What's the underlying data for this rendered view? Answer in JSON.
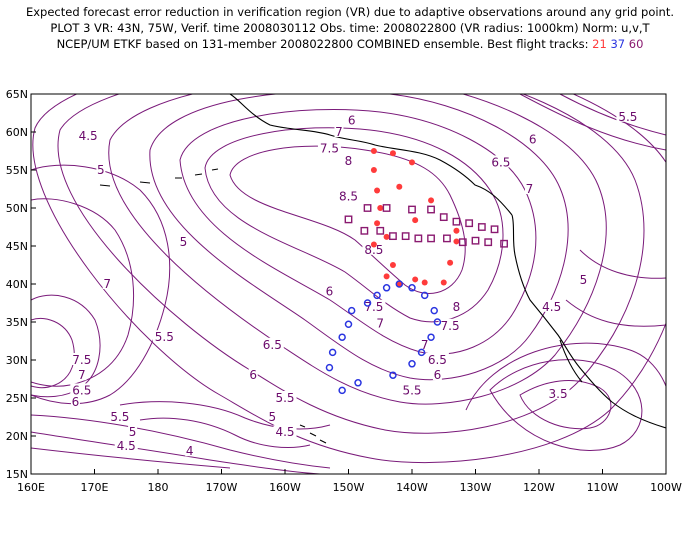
{
  "header": {
    "line1": "Expected forecast error reduction in verification region (VR) due to adaptive observations around any grid point.",
    "line2": "PLOT 3 VR: 43N, 75W, Verif. time 2008030112 Obs. time: 2008022800 (VR radius: 1000km) Norm: u,v,T",
    "line3_prefix": "NCEP/UM ETKF based on 131-member 2008022800 COMBINED ensemble.  Best flight tracks: ",
    "track_21": "21",
    "track_37": "37",
    "track_60": "60"
  },
  "map": {
    "lat_labels": [
      "65N",
      "60N",
      "55N",
      "50N",
      "45N",
      "40N",
      "35N",
      "30N",
      "25N",
      "20N",
      "15N"
    ],
    "lon_labels": [
      "160E",
      "170E",
      "180",
      "170W",
      "160W",
      "150W",
      "140W",
      "130W",
      "120W",
      "110W",
      "100W"
    ],
    "contour_labels": [
      {
        "text": "6",
        "lon": -149.5,
        "lat": 61.5
      },
      {
        "text": "5.5",
        "lon": -106,
        "lat": 62
      },
      {
        "text": "4.5",
        "lon": 169,
        "lat": 59.5
      },
      {
        "text": "7",
        "lon": -151.5,
        "lat": 60
      },
      {
        "text": "6",
        "lon": -121,
        "lat": 59
      },
      {
        "text": "7.5",
        "lon": -153,
        "lat": 57.8
      },
      {
        "text": "8",
        "lon": -150,
        "lat": 56.2
      },
      {
        "text": "6.5",
        "lon": -126,
        "lat": 56
      },
      {
        "text": "5",
        "lon": 171,
        "lat": 55
      },
      {
        "text": "8.5",
        "lon": -150,
        "lat": 51.5
      },
      {
        "text": "7",
        "lon": -121.5,
        "lat": 52.5
      },
      {
        "text": "5",
        "lon": -176,
        "lat": 45.5
      },
      {
        "text": "8.5",
        "lon": -146,
        "lat": 44.5
      },
      {
        "text": "7",
        "lon": 172,
        "lat": 40
      },
      {
        "text": "6",
        "lon": -153,
        "lat": 39
      },
      {
        "text": "8",
        "lon": -133,
        "lat": 37
      },
      {
        "text": "5",
        "lon": -113,
        "lat": 40.5
      },
      {
        "text": "4.5",
        "lon": -118,
        "lat": 37
      },
      {
        "text": "7.5",
        "lon": -146,
        "lat": 37
      },
      {
        "text": "7",
        "lon": -145,
        "lat": 34.8
      },
      {
        "text": "7.5",
        "lon": -134,
        "lat": 34.5
      },
      {
        "text": "5.5",
        "lon": -179,
        "lat": 33
      },
      {
        "text": "7",
        "lon": -138,
        "lat": 32
      },
      {
        "text": "6.5",
        "lon": -162,
        "lat": 32
      },
      {
        "text": "7.5",
        "lon": 168,
        "lat": 30
      },
      {
        "text": "6.5",
        "lon": -136,
        "lat": 30
      },
      {
        "text": "6",
        "lon": -165,
        "lat": 28
      },
      {
        "text": "7",
        "lon": 168,
        "lat": 28
      },
      {
        "text": "6",
        "lon": -136,
        "lat": 28
      },
      {
        "text": "6.5",
        "lon": 168,
        "lat": 26
      },
      {
        "text": "3.5",
        "lon": -117,
        "lat": 25.5
      },
      {
        "text": "5.5",
        "lon": -160,
        "lat": 25
      },
      {
        "text": "5.5",
        "lon": -140,
        "lat": 26
      },
      {
        "text": "6",
        "lon": 167,
        "lat": 24.5
      },
      {
        "text": "5.5",
        "lon": 174,
        "lat": 22.5
      },
      {
        "text": "5",
        "lon": -162,
        "lat": 22.5
      },
      {
        "text": "5",
        "lon": 176,
        "lat": 20.5
      },
      {
        "text": "4.5",
        "lon": -160,
        "lat": 20.5
      },
      {
        "text": "4.5",
        "lon": 175,
        "lat": 18.7
      },
      {
        "text": "4",
        "lon": -175,
        "lat": 18
      }
    ]
  }
}
